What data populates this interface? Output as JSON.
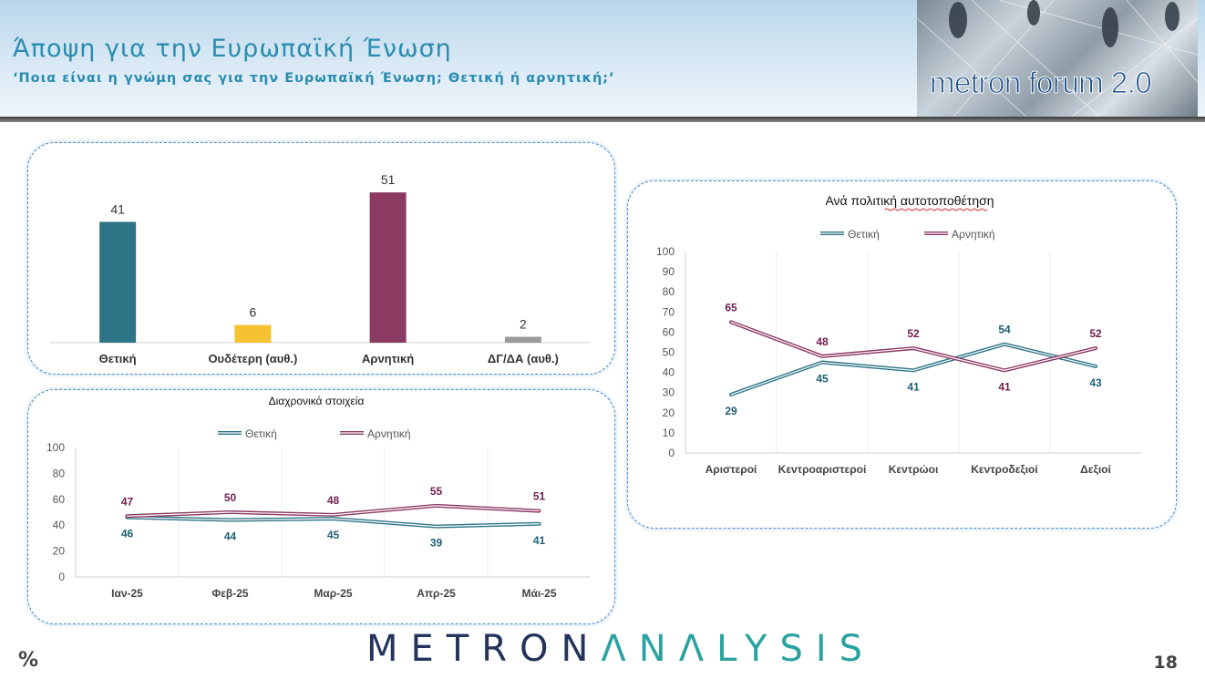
{
  "header": {
    "title": "Άποψη για την Ευρωπαϊκή Ένωση",
    "subtitle": "‘Ποια είναι η γνώμη σας για την Ευρωπαϊκή Ένωση; Θετική ή αρνητική;’",
    "logo_text": "metron forum 2.0"
  },
  "footer": {
    "brand_part1": "METRON",
    "brand_part2": "ΛNΛLYSIS",
    "percent_label": "%",
    "page_number": "18"
  },
  "colors": {
    "positive": "#2e7487",
    "neutral": "#f5c232",
    "negative": "#8b3a62",
    "dk": "#9a9a9a",
    "positive_label": "#1f5f74",
    "negative_label": "#6e1f4d"
  },
  "chart_data": [
    {
      "type": "bar",
      "categories": [
        "Θετική",
        "Ουδέτερη (αυθ.)",
        "Αρνητική",
        "ΔΓ/ΔΑ (αυθ.)"
      ],
      "values": [
        41,
        6,
        51,
        2
      ],
      "ylim": [
        0,
        60
      ]
    },
    {
      "type": "line",
      "title": "Διαχρονικά στοιχεία",
      "categories": [
        "Ιαν-25",
        "Φεβ-25",
        "Μαρ-25",
        "Απρ-25",
        "Μάι-25"
      ],
      "series": [
        {
          "name": "Θετική",
          "values": [
            46,
            44,
            45,
            39,
            41
          ]
        },
        {
          "name": "Αρνητική",
          "values": [
            47,
            50,
            48,
            55,
            51
          ]
        }
      ],
      "yticks": [
        "0",
        "20",
        "40",
        "60",
        "80",
        "100"
      ],
      "ylim": [
        0,
        100
      ],
      "legend": "top-center"
    },
    {
      "type": "line",
      "title": "Ανά πολιτική αυτοτοποθέτηση",
      "categories": [
        "Αριστεροί",
        "Κεντροαριστεροί",
        "Κεντρώοι",
        "Κεντροδεξιοί",
        "Δεξιοί"
      ],
      "series": [
        {
          "name": "Θετική",
          "values": [
            29,
            45,
            41,
            54,
            43
          ]
        },
        {
          "name": "Αρνητική",
          "values": [
            65,
            48,
            52,
            41,
            52
          ]
        }
      ],
      "yticks": [
        "0",
        "10",
        "20",
        "30",
        "40",
        "50",
        "60",
        "70",
        "80",
        "90",
        "100"
      ],
      "ylim": [
        0,
        100
      ],
      "legend": "top-center"
    }
  ]
}
